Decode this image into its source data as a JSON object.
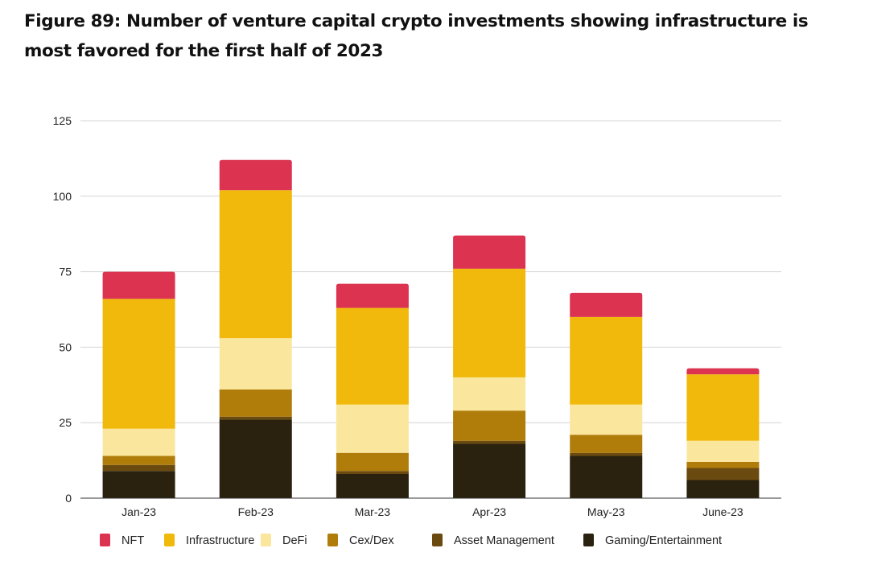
{
  "title": "Figure 89: Number of venture capital crypto investments showing infrastructure is most favored for the first half of 2023",
  "chart_data": {
    "type": "bar",
    "stacked": true,
    "title": "Figure 89: Number of venture capital crypto investments showing infrastructure is most favored for the first half of 2023",
    "xlabel": "",
    "ylabel": "",
    "categories": [
      "Jan-23",
      "Feb-23",
      "Mar-23",
      "Apr-23",
      "May-23",
      "June-23"
    ],
    "ylim": [
      0,
      125
    ],
    "yticks": [
      0,
      25,
      50,
      75,
      100,
      125
    ],
    "grid": true,
    "legend_position": "bottom",
    "series": [
      {
        "name": "Gaming/Entertainment",
        "color": "#2a210e",
        "values": [
          9,
          26,
          8,
          18,
          14,
          6
        ]
      },
      {
        "name": "Asset Management",
        "color": "#6b4a0f",
        "values": [
          2,
          1,
          1,
          1,
          1,
          4
        ]
      },
      {
        "name": "Cex/Dex",
        "color": "#b07d0b",
        "values": [
          3,
          9,
          6,
          10,
          6,
          2
        ]
      },
      {
        "name": "DeFi",
        "color": "#fae79d",
        "values": [
          9,
          17,
          16,
          11,
          10,
          7
        ]
      },
      {
        "name": "Infrastructure",
        "color": "#f0b90b",
        "values": [
          43,
          49,
          32,
          36,
          29,
          22
        ]
      },
      {
        "name": "NFT",
        "color": "#db3350",
        "values": [
          9,
          10,
          8,
          11,
          8,
          2
        ]
      }
    ],
    "legend_order": [
      "NFT",
      "Infrastructure",
      "DeFi",
      "Cex/Dex",
      "Asset Management",
      "Gaming/Entertainment"
    ]
  }
}
